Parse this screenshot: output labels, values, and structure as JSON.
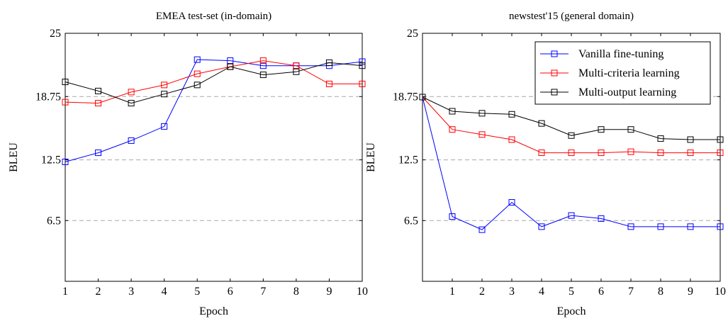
{
  "chart_data": [
    {
      "type": "line",
      "title": "EMEA test-set (in-domain)",
      "xlabel": "Epoch",
      "ylabel": "BLEU",
      "xlim": [
        1,
        10
      ],
      "ylim": [
        0.5,
        25
      ],
      "xticks": [
        1,
        2,
        3,
        4,
        5,
        6,
        7,
        8,
        9,
        10
      ],
      "yticks": [
        6.5,
        12.5,
        18.75,
        25
      ],
      "ytick_labels": [
        "6.5",
        "12.5",
        "18.75",
        "25"
      ],
      "grid": "horizontal-dashed",
      "legend": false,
      "series": [
        {
          "name": "Vanilla fine-tuning",
          "color": "#0000ff",
          "x": [
            1,
            2,
            3,
            4,
            5,
            6,
            7,
            8,
            9,
            10
          ],
          "values": [
            12.3,
            13.2,
            14.4,
            15.8,
            22.4,
            22.3,
            21.8,
            21.8,
            21.8,
            22.2
          ]
        },
        {
          "name": "Multi-criteria learning",
          "color": "#ff0000",
          "x": [
            1,
            2,
            3,
            4,
            5,
            6,
            7,
            8,
            9,
            10
          ],
          "values": [
            18.2,
            18.1,
            19.2,
            19.9,
            21.0,
            21.7,
            22.3,
            21.8,
            20.0,
            20.0
          ]
        },
        {
          "name": "Multi-output learning",
          "color": "#000000",
          "x": [
            1,
            2,
            3,
            4,
            5,
            6,
            7,
            8,
            9,
            10
          ],
          "values": [
            20.2,
            19.3,
            18.1,
            19.0,
            19.9,
            21.7,
            20.9,
            21.2,
            22.1,
            21.8
          ]
        }
      ]
    },
    {
      "type": "line",
      "title": "newstest'15 (general domain)",
      "xlabel": "Epoch",
      "ylabel": "BLEU",
      "xlim": [
        0,
        10
      ],
      "ylim": [
        0.5,
        25
      ],
      "xticks": [
        1,
        2,
        3,
        4,
        5,
        6,
        7,
        8,
        9,
        10
      ],
      "yticks": [
        6.5,
        12.5,
        18.75,
        25
      ],
      "ytick_labels": [
        "6.5",
        "12.5",
        "18.75",
        "25"
      ],
      "grid": "horizontal-dashed",
      "legend": "top-right",
      "series": [
        {
          "name": "Vanilla fine-tuning",
          "color": "#0000ff",
          "x": [
            0,
            1,
            2,
            3,
            4,
            5,
            6,
            7,
            8,
            9,
            10
          ],
          "values": [
            18.7,
            6.9,
            5.6,
            8.3,
            5.9,
            7.0,
            6.7,
            5.9,
            5.9,
            5.9,
            5.9
          ]
        },
        {
          "name": "Multi-criteria learning",
          "color": "#ff0000",
          "x": [
            0,
            1,
            2,
            3,
            4,
            5,
            6,
            7,
            8,
            9,
            10
          ],
          "values": [
            18.7,
            15.5,
            15.0,
            14.5,
            13.2,
            13.2,
            13.2,
            13.3,
            13.2,
            13.2,
            13.2
          ]
        },
        {
          "name": "Multi-output learning",
          "color": "#000000",
          "x": [
            0,
            1,
            2,
            3,
            4,
            5,
            6,
            7,
            8,
            9,
            10
          ],
          "values": [
            18.7,
            17.3,
            17.1,
            17.0,
            16.1,
            14.9,
            15.5,
            15.5,
            14.6,
            14.5,
            14.5
          ]
        }
      ]
    }
  ]
}
